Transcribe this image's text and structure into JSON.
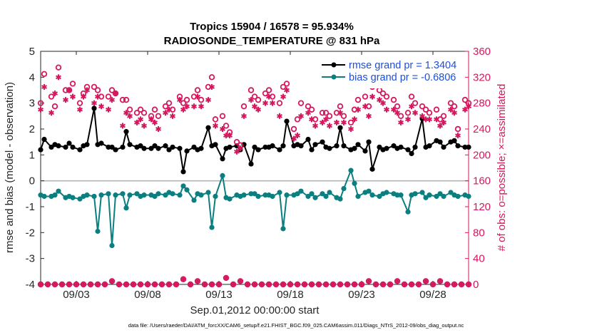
{
  "chart_data": {
    "type": "line",
    "title": "Tropics 15904 / 16578 = 95.934%",
    "subtitle": "RADIOSONDE_TEMPERATURE @ 831 hPa",
    "xlabel": "Sep.01,2012 00:00:00 start",
    "ylabel_left": "rmse and bias (model - observation)",
    "ylabel_right": "# of obs: o=possible; ×=assimilated",
    "footer": "data file: /Users/raeder/DAI/ATM_forcXX/CAM6_setup/f.e21.FHIST_BGC.f09_025.CAM6assim.011/Diags_NTrS_2012-09/obs_diag_output.nc",
    "xlim": [
      0.5,
      30.5
    ],
    "ylim_left": [
      -4,
      5
    ],
    "ylim_right": [
      0,
      360
    ],
    "x_ticks": [
      3,
      8,
      13,
      18,
      23,
      28
    ],
    "x_tick_labels": [
      "09/03",
      "09/08",
      "09/13",
      "09/18",
      "09/23",
      "09/28"
    ],
    "y_left_ticks": [
      -4,
      -3,
      -2,
      -1,
      0,
      1,
      2,
      3,
      4,
      5
    ],
    "y_right_ticks": [
      0,
      40,
      80,
      120,
      160,
      200,
      240,
      280,
      320,
      360
    ],
    "zero_line": 0,
    "colors": {
      "rmse": "#000000",
      "bias": "#0b7f7f",
      "obs": "#d6175e",
      "legend_text": "#1f4fd8",
      "zero_line": "#b3b3b3"
    },
    "legend": {
      "placement": "top-right",
      "entries": [
        "rmse grand pr = 1.3404",
        "bias grand pr = -0.6806"
      ]
    },
    "series": [
      {
        "name": "rmse grand pr = 1.3404",
        "style": "line+marker",
        "x": [
          0.5,
          0.75,
          1.25,
          1.5,
          1.75,
          2.25,
          2.5,
          2.75,
          3.25,
          3.5,
          3.75,
          4.25,
          4.5,
          4.75,
          5.25,
          5.5,
          5.75,
          6.25,
          6.5,
          6.75,
          7.25,
          7.5,
          7.75,
          8.25,
          8.5,
          8.75,
          9.25,
          9.5,
          9.75,
          10.25,
          10.5,
          10.75,
          11.25,
          11.5,
          11.75,
          12.25,
          12.5,
          12.75,
          13.25,
          13.5,
          13.75,
          14.25,
          14.5,
          14.75,
          15.25,
          15.5,
          15.75,
          16.25,
          16.5,
          16.75,
          17.25,
          17.5,
          17.75,
          18.25,
          18.5,
          18.75,
          19.25,
          19.5,
          19.75,
          20.25,
          20.5,
          20.75,
          21.25,
          21.5,
          21.75,
          22.25,
          22.5,
          22.75,
          23.25,
          23.5,
          23.75,
          24.25,
          24.5,
          24.75,
          25.25,
          25.5,
          25.75,
          26.25,
          26.5,
          26.75,
          27.25,
          27.5,
          27.75,
          28.25,
          28.5,
          28.75,
          29.25,
          29.5,
          29.75,
          30.25,
          30.5
        ],
        "values": [
          1.2,
          1.6,
          1.3,
          1.4,
          1.35,
          1.3,
          1.45,
          1.3,
          1.2,
          1.35,
          1.4,
          2.8,
          1.4,
          1.45,
          1.3,
          1.3,
          1.2,
          1.3,
          1.9,
          1.4,
          1.3,
          1.35,
          1.25,
          1.25,
          1.35,
          1.25,
          1.35,
          1.2,
          1.3,
          1.25,
          0.35,
          1.15,
          1.3,
          1.2,
          1.25,
          2.05,
          1.35,
          1.4,
          0.85,
          1.25,
          1.3,
          1.35,
          1.2,
          1.4,
          0.65,
          1.3,
          1.2,
          1.3,
          1.3,
          1.35,
          1.2,
          1.35,
          2.3,
          1.35,
          1.4,
          1.35,
          1.6,
          1.2,
          1.4,
          1.5,
          1.3,
          1.25,
          1.35,
          2.05,
          1.35,
          1.2,
          1.25,
          1.4,
          1.15,
          1.5,
          0.45,
          1.3,
          1.2,
          1.25,
          1.35,
          1.25,
          1.3,
          1.2,
          1.05,
          1.3,
          2.4,
          1.3,
          1.35,
          1.55,
          1.5,
          1.3,
          1.5,
          1.55,
          1.35,
          1.3,
          1.3
        ]
      },
      {
        "name": "bias grand pr = -0.6806",
        "style": "line+marker",
        "x": [
          0.5,
          0.75,
          1.25,
          1.5,
          1.75,
          2.25,
          2.5,
          2.75,
          3.25,
          3.5,
          3.75,
          4.25,
          4.5,
          4.75,
          5.25,
          5.5,
          5.75,
          6.25,
          6.5,
          6.75,
          7.25,
          7.5,
          7.75,
          8.25,
          8.5,
          8.75,
          9.25,
          9.5,
          9.75,
          10.25,
          10.5,
          10.75,
          11.25,
          11.5,
          11.75,
          12.25,
          12.5,
          12.75,
          13.25,
          13.5,
          13.75,
          14.25,
          14.5,
          14.75,
          15.25,
          15.5,
          15.75,
          16.25,
          16.5,
          16.75,
          17.25,
          17.5,
          17.75,
          18.25,
          18.5,
          18.75,
          19.25,
          19.5,
          19.75,
          20.25,
          20.5,
          20.75,
          21.25,
          21.5,
          21.75,
          22.25,
          22.5,
          22.75,
          23.25,
          23.5,
          23.75,
          24.25,
          24.5,
          24.75,
          25.25,
          25.5,
          25.75,
          26.25,
          26.5,
          26.75,
          27.25,
          27.5,
          27.75,
          28.25,
          28.5,
          28.75,
          29.25,
          29.5,
          29.75,
          30.25,
          30.5
        ],
        "values": [
          -0.55,
          -0.6,
          -0.6,
          -0.55,
          -0.4,
          -0.65,
          -0.6,
          -0.65,
          -0.7,
          -0.6,
          -0.55,
          -0.6,
          -1.95,
          -0.55,
          -0.5,
          -2.5,
          -0.55,
          -0.5,
          -1.05,
          -0.55,
          -0.5,
          -0.6,
          -0.55,
          -0.55,
          -0.6,
          -0.5,
          -0.55,
          -0.45,
          -0.5,
          -0.55,
          -0.2,
          -0.35,
          -0.75,
          -0.5,
          -0.55,
          -0.45,
          -1.8,
          -0.6,
          0.2,
          -0.65,
          -0.7,
          -0.55,
          -0.6,
          -0.55,
          -0.5,
          -0.5,
          -0.6,
          -0.55,
          -0.55,
          -0.6,
          -0.45,
          -1.85,
          -0.55,
          -0.55,
          -0.5,
          -0.4,
          -0.6,
          -0.5,
          -0.65,
          -0.5,
          -0.6,
          -0.45,
          -0.65,
          -0.7,
          -0.3,
          0.4,
          -0.1,
          -0.6,
          -0.45,
          -0.4,
          -0.55,
          -0.6,
          -0.5,
          -0.45,
          -0.5,
          -0.55,
          -0.55,
          -1.2,
          -0.55,
          -0.5,
          -0.45,
          -0.65,
          -0.55,
          -0.6,
          -0.5,
          -0.6,
          -0.45,
          -0.55,
          -0.6,
          -0.55,
          -0.6
        ]
      },
      {
        "name": "possible",
        "style": "open-circle",
        "axis": "right",
        "x": [
          0.5,
          0.75,
          1.25,
          1.5,
          1.75,
          2.25,
          2.5,
          2.75,
          3.25,
          3.5,
          3.75,
          4.25,
          4.5,
          4.75,
          5.25,
          5.5,
          5.75,
          6.25,
          6.5,
          6.75,
          7.25,
          7.5,
          7.75,
          8.25,
          8.5,
          8.75,
          9.25,
          9.5,
          9.75,
          10.25,
          10.5,
          10.75,
          11.25,
          11.5,
          11.75,
          12.25,
          12.5,
          12.75,
          13.25,
          13.5,
          13.75,
          14.25,
          14.5,
          14.75,
          15.25,
          15.5,
          15.75,
          16.25,
          16.5,
          16.75,
          17.25,
          17.5,
          17.75,
          18.25,
          18.5,
          18.75,
          19.25,
          19.5,
          19.75,
          20.25,
          20.5,
          20.75,
          21.25,
          21.5,
          21.75,
          22.25,
          22.5,
          22.75,
          23.25,
          23.5,
          23.75,
          24.25,
          24.5,
          24.75,
          25.25,
          25.5,
          25.75,
          26.25,
          26.5,
          26.75,
          27.25,
          27.5,
          27.75,
          28.25,
          28.5,
          28.75,
          29.25,
          29.5,
          29.75,
          30.25,
          30.5
        ],
        "values": [
          280,
          325,
          290,
          275,
          335,
          300,
          300,
          310,
          280,
          295,
          305,
          305,
          300,
          290,
          290,
          300,
          295,
          285,
          285,
          270,
          265,
          270,
          265,
          260,
          270,
          260,
          275,
          280,
          270,
          290,
          280,
          285,
          290,
          300,
          285,
          305,
          320,
          255,
          260,
          245,
          235,
          220,
          215,
          275,
          300,
          290,
          285,
          295,
          300,
          290,
          280,
          305,
          310,
          240,
          255,
          280,
          275,
          270,
          255,
          265,
          265,
          260,
          265,
          275,
          260,
          250,
          270,
          285,
          290,
          275,
          305,
          300,
          295,
          290,
          285,
          275,
          260,
          265,
          290,
          280,
          275,
          270,
          265,
          270,
          255,
          260,
          280,
          275,
          240,
          285,
          280
        ]
      },
      {
        "name": "assimilated",
        "style": "asterisk",
        "axis": "right",
        "x": [
          0.5,
          0.75,
          1.25,
          1.5,
          1.75,
          2.25,
          2.5,
          2.75,
          3.25,
          3.5,
          3.75,
          4.25,
          4.5,
          4.75,
          5.25,
          5.5,
          5.75,
          6.25,
          6.5,
          6.75,
          7.25,
          7.5,
          7.75,
          8.25,
          8.5,
          8.75,
          9.25,
          9.5,
          9.75,
          10.25,
          10.5,
          10.75,
          11.25,
          11.5,
          11.75,
          12.25,
          12.5,
          12.75,
          13.25,
          13.5,
          13.75,
          14.25,
          14.5,
          14.75,
          15.25,
          15.5,
          15.75,
          16.25,
          16.5,
          16.75,
          17.25,
          17.5,
          17.75,
          18.25,
          18.5,
          18.75,
          19.25,
          19.5,
          19.75,
          20.25,
          20.5,
          20.75,
          21.25,
          21.5,
          21.75,
          22.25,
          22.5,
          22.75,
          23.25,
          23.5,
          23.75,
          24.25,
          24.5,
          24.75,
          25.25,
          25.5,
          25.75,
          26.25,
          26.5,
          26.75,
          27.25,
          27.5,
          27.75,
          28.25,
          28.5,
          28.75,
          29.25,
          29.5,
          29.75,
          30.25,
          30.5
        ],
        "values": [
          270,
          305,
          265,
          295,
          320,
          285,
          300,
          290,
          270,
          290,
          300,
          280,
          290,
          275,
          270,
          285,
          295,
          245,
          265,
          260,
          250,
          255,
          245,
          255,
          250,
          240,
          265,
          270,
          260,
          285,
          270,
          275,
          275,
          290,
          275,
          285,
          305,
          245,
          240,
          230,
          230,
          205,
          210,
          260,
          285,
          275,
          270,
          280,
          290,
          280,
          260,
          290,
          300,
          225,
          230,
          260,
          265,
          255,
          245,
          250,
          255,
          245,
          250,
          265,
          250,
          240,
          255,
          270,
          275,
          260,
          290,
          285,
          280,
          270,
          270,
          265,
          250,
          255,
          275,
          265,
          260,
          255,
          255,
          255,
          245,
          250,
          270,
          265,
          230,
          270,
          275
        ]
      },
      {
        "name": "possible (bottom)",
        "style": "open-circle",
        "axis": "right",
        "x": [
          0.5,
          1,
          1.5,
          2,
          2.5,
          3,
          3.5,
          4,
          4.5,
          5,
          5.5,
          6,
          6.5,
          7,
          7.5,
          8,
          8.5,
          9,
          9.5,
          10,
          10.5,
          11,
          11.5,
          12,
          12.5,
          13,
          13.5,
          14,
          14.5,
          15,
          15.5,
          16,
          16.5,
          17,
          17.5,
          18,
          18.5,
          19,
          19.5,
          20,
          20.5,
          21,
          21.5,
          22,
          22.5,
          23,
          23.5,
          24,
          24.5,
          25,
          25.5,
          26,
          26.5,
          27,
          27.5,
          28,
          28.5,
          29,
          29.5,
          30,
          30.5
        ],
        "values": [
          0,
          0,
          0,
          0,
          0,
          0,
          0,
          0,
          0,
          0,
          5,
          0,
          0,
          0,
          0,
          0,
          0,
          0,
          0,
          0,
          8,
          0,
          5,
          0,
          0,
          0,
          10,
          0,
          5,
          0,
          0,
          0,
          0,
          0,
          0,
          0,
          0,
          0,
          0,
          0,
          0,
          0,
          0,
          0,
          0,
          0,
          5,
          0,
          0,
          0,
          5,
          0,
          0,
          0,
          5,
          0,
          5,
          0,
          0,
          0,
          0
        ]
      },
      {
        "name": "assimilated (bottom)",
        "style": "asterisk",
        "axis": "right",
        "x": [
          0.5,
          1,
          1.5,
          2,
          2.5,
          3,
          3.5,
          4,
          4.5,
          5,
          5.5,
          6,
          6.5,
          7,
          7.5,
          8,
          8.5,
          9,
          9.5,
          10,
          10.5,
          11,
          11.5,
          12,
          12.5,
          13,
          13.5,
          14,
          14.5,
          15,
          15.5,
          16,
          16.5,
          17,
          17.5,
          18,
          18.5,
          19,
          19.5,
          20,
          20.5,
          21,
          21.5,
          22,
          22.5,
          23,
          23.5,
          24,
          24.5,
          25,
          25.5,
          26,
          26.5,
          27,
          27.5,
          28,
          28.5,
          29,
          29.5,
          30,
          30.5
        ],
        "values": [
          0,
          0,
          0,
          0,
          0,
          0,
          0,
          0,
          0,
          0,
          5,
          0,
          0,
          0,
          0,
          0,
          0,
          0,
          0,
          0,
          8,
          0,
          5,
          0,
          0,
          0,
          10,
          0,
          5,
          0,
          0,
          0,
          0,
          0,
          0,
          0,
          0,
          0,
          0,
          0,
          0,
          0,
          0,
          0,
          0,
          0,
          5,
          0,
          0,
          0,
          5,
          0,
          0,
          0,
          5,
          0,
          5,
          0,
          0,
          0,
          0
        ]
      }
    ]
  }
}
